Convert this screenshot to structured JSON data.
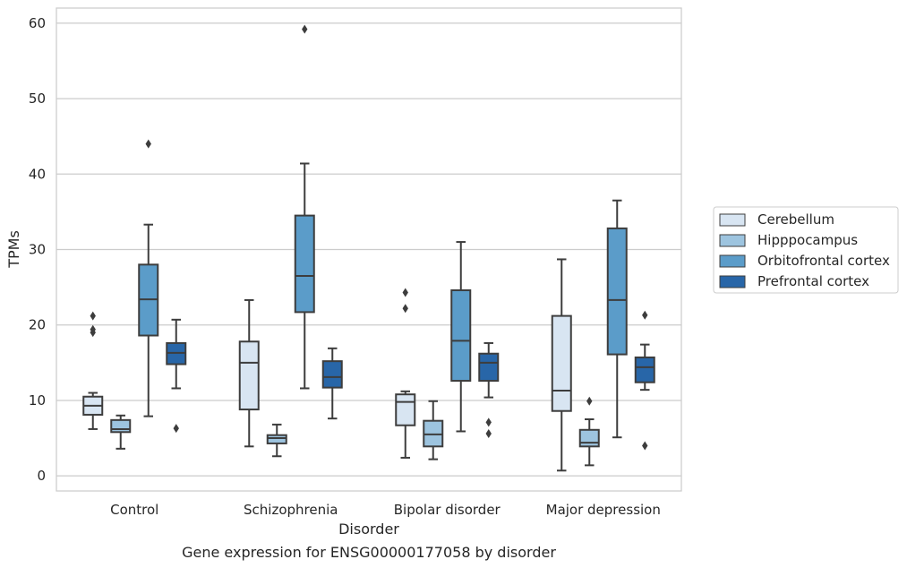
{
  "chart_data": {
    "type": "box",
    "caption": "Gene expression for ENSG00000177058 by disorder",
    "xlabel": "Disorder",
    "ylabel": "TPMs",
    "ylim": [
      -2,
      62
    ],
    "yticks": [
      0,
      10,
      20,
      30,
      40,
      50,
      60
    ],
    "grid": true,
    "legend_position": "right",
    "categories": [
      "Control",
      "Schizophrenia",
      "Bipolar disorder",
      "Major depression"
    ],
    "series": [
      {
        "name": "Cerebellum",
        "color": "#d8e5f2",
        "boxes": [
          {
            "whislo": 6.2,
            "q1": 8.1,
            "med": 9.3,
            "q3": 10.5,
            "whishi": 11.0,
            "fliers": [
              19.0,
              19.4,
              21.2
            ]
          },
          {
            "whislo": 3.9,
            "q1": 8.8,
            "med": 15.0,
            "q3": 17.8,
            "whishi": 23.3,
            "fliers": []
          },
          {
            "whislo": 2.4,
            "q1": 6.7,
            "med": 9.8,
            "q3": 10.8,
            "whishi": 11.2,
            "fliers": [
              22.2,
              24.3
            ]
          },
          {
            "whislo": 0.7,
            "q1": 8.6,
            "med": 11.3,
            "q3": 21.2,
            "whishi": 28.7,
            "fliers": []
          }
        ]
      },
      {
        "name": "Hipppocampus",
        "color": "#9dc4df",
        "boxes": [
          {
            "whislo": 3.6,
            "q1": 5.8,
            "med": 6.2,
            "q3": 7.4,
            "whishi": 8.0,
            "fliers": []
          },
          {
            "whislo": 2.6,
            "q1": 4.3,
            "med": 5.0,
            "q3": 5.4,
            "whishi": 6.8,
            "fliers": []
          },
          {
            "whislo": 2.2,
            "q1": 3.9,
            "med": 5.5,
            "q3": 7.3,
            "whishi": 9.9,
            "fliers": []
          },
          {
            "whislo": 1.4,
            "q1": 3.9,
            "med": 4.4,
            "q3": 6.1,
            "whishi": 7.5,
            "fliers": [
              9.9
            ]
          }
        ]
      },
      {
        "name": "Orbitofrontal cortex",
        "color": "#5b9cc9",
        "boxes": [
          {
            "whislo": 7.9,
            "q1": 18.6,
            "med": 23.4,
            "q3": 28.0,
            "whishi": 33.3,
            "fliers": [
              44.0
            ]
          },
          {
            "whislo": 11.6,
            "q1": 21.7,
            "med": 26.5,
            "q3": 34.5,
            "whishi": 41.4,
            "fliers": [
              59.2
            ]
          },
          {
            "whislo": 5.9,
            "q1": 12.6,
            "med": 17.9,
            "q3": 24.6,
            "whishi": 31.0,
            "fliers": []
          },
          {
            "whislo": 5.1,
            "q1": 16.1,
            "med": 23.3,
            "q3": 32.8,
            "whishi": 36.5,
            "fliers": []
          }
        ]
      },
      {
        "name": "Prefrontal cortex",
        "color": "#2866a8",
        "boxes": [
          {
            "whislo": 11.6,
            "q1": 14.8,
            "med": 16.3,
            "q3": 17.6,
            "whishi": 20.7,
            "fliers": [
              6.3
            ]
          },
          {
            "whislo": 7.6,
            "q1": 11.7,
            "med": 13.1,
            "q3": 15.2,
            "whishi": 16.9,
            "fliers": []
          },
          {
            "whislo": 10.4,
            "q1": 12.6,
            "med": 15.0,
            "q3": 16.2,
            "whishi": 17.6,
            "fliers": [
              5.6,
              7.1
            ]
          },
          {
            "whislo": 11.4,
            "q1": 12.4,
            "med": 14.4,
            "q3": 15.7,
            "whishi": 17.4,
            "fliers": [
              4.0,
              21.3
            ]
          }
        ]
      }
    ]
  }
}
